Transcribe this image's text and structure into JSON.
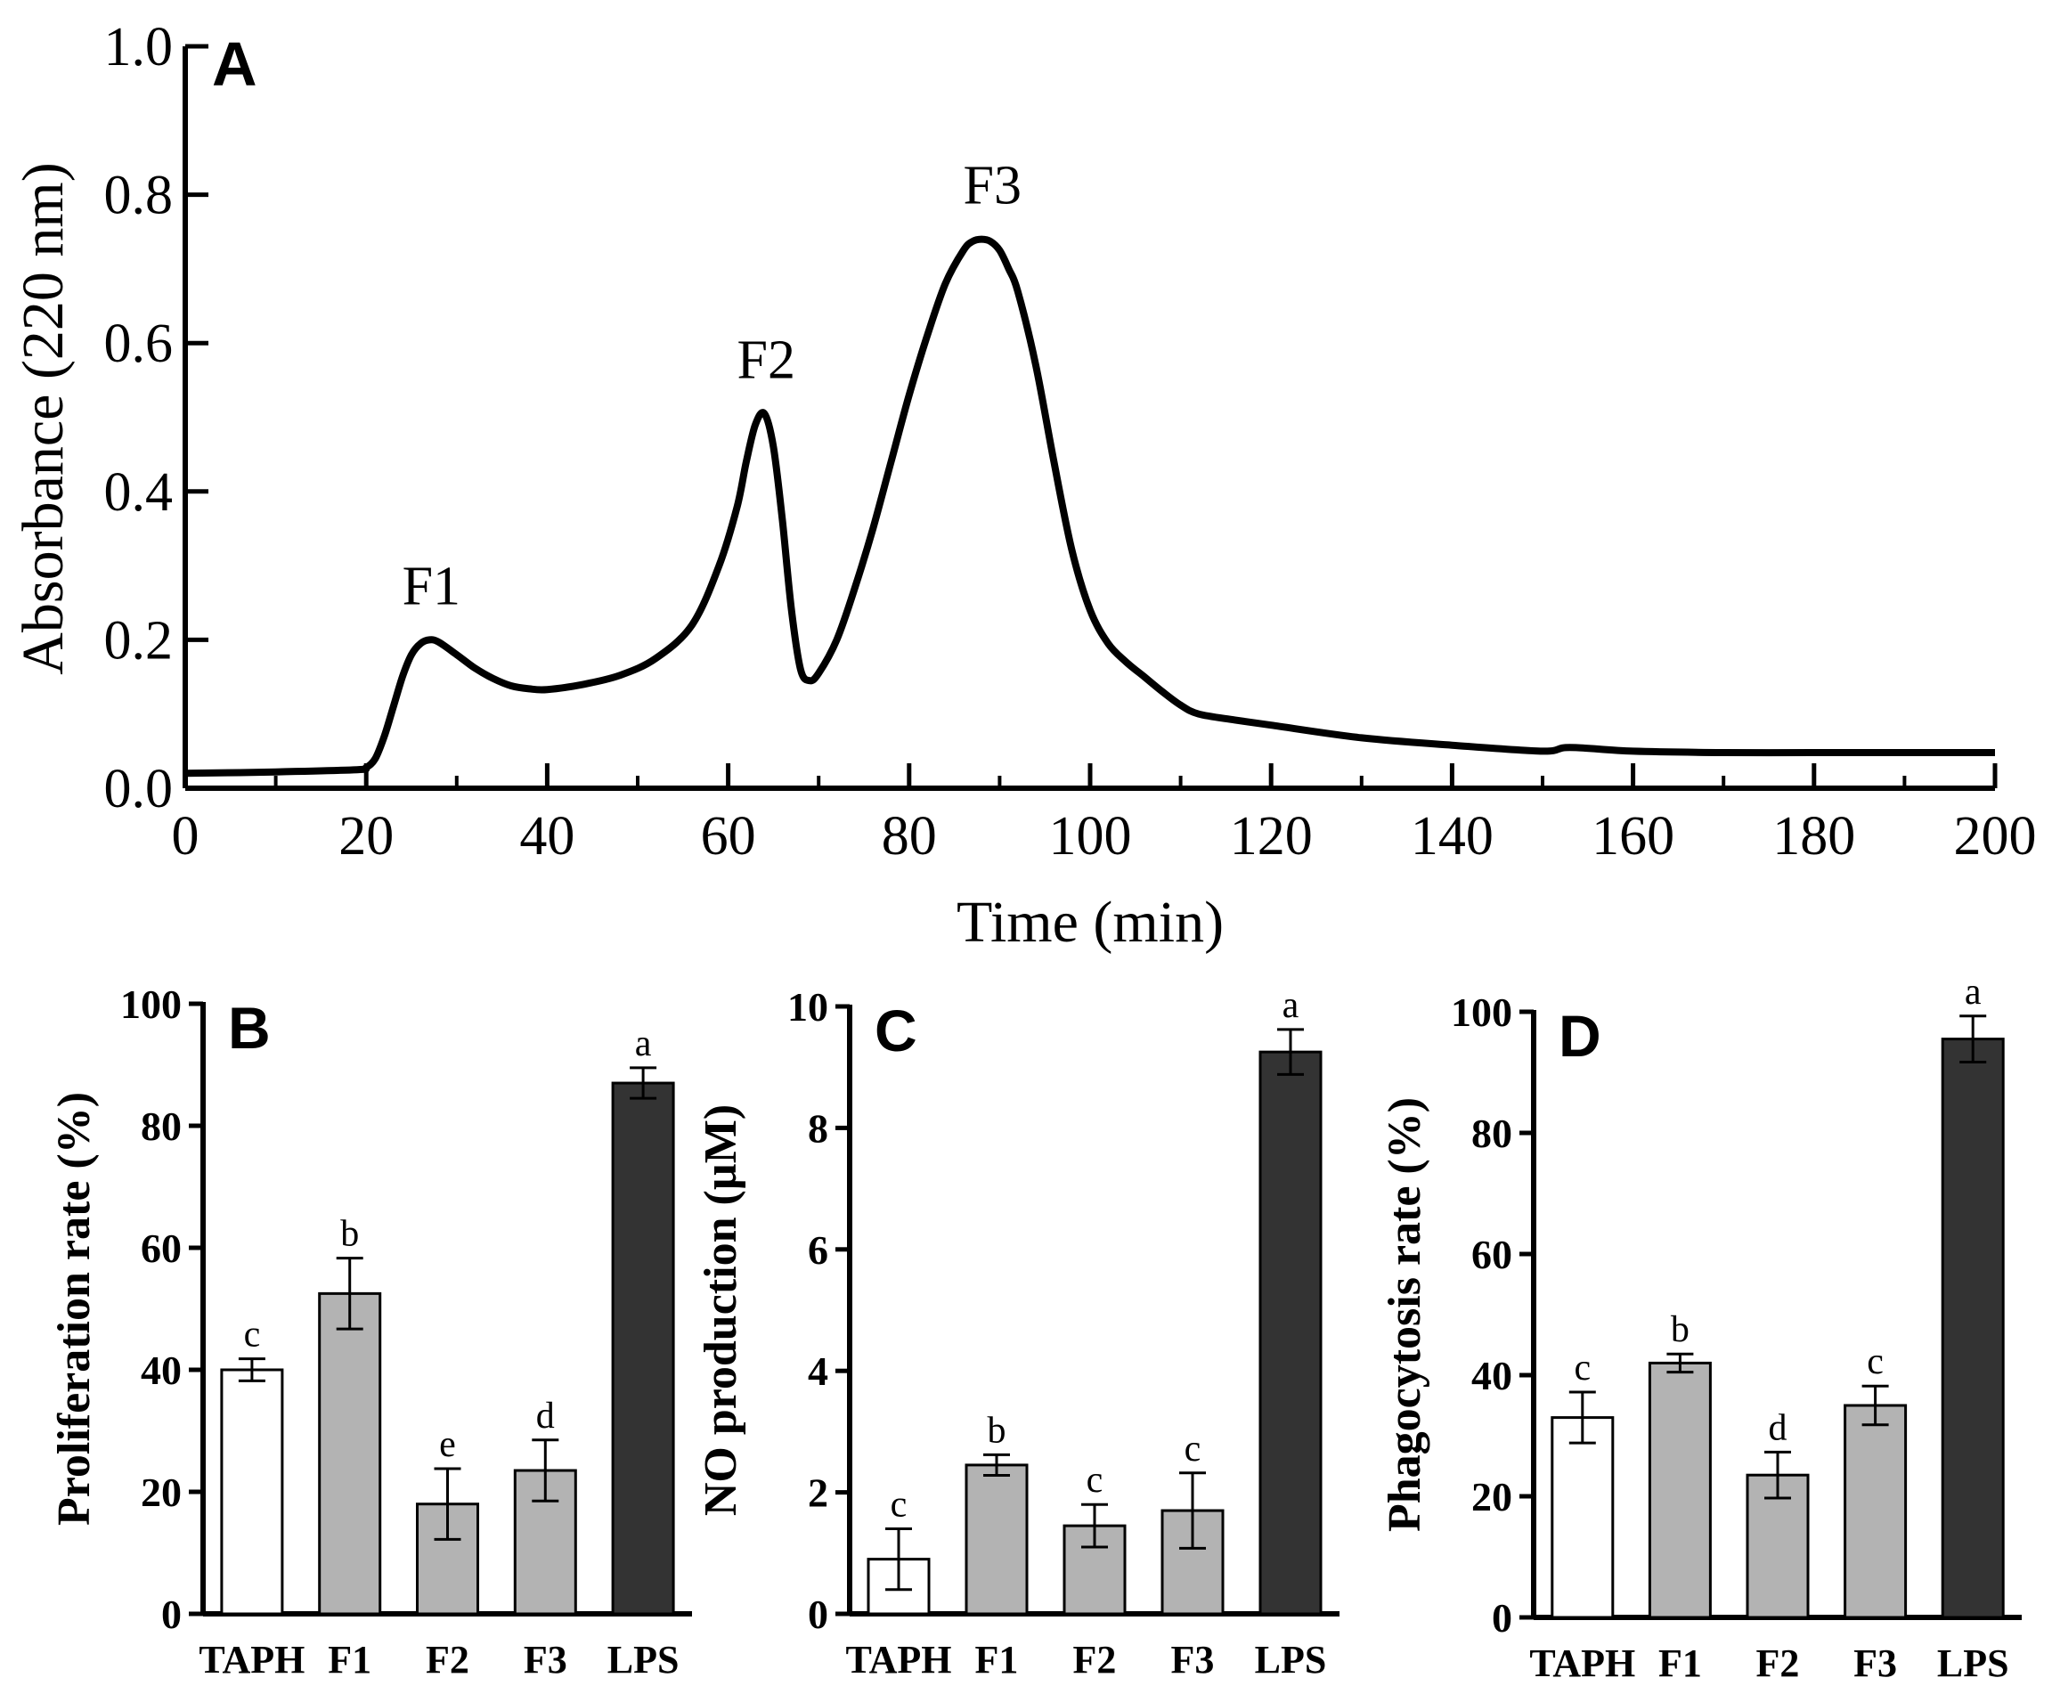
{
  "chart_data": [
    {
      "type": "line",
      "panel": "A",
      "xlabel": "Time (min)",
      "ylabel": "Absorbance (220 nm)",
      "xlim": [
        0,
        200
      ],
      "ylim": [
        0,
        1.0
      ],
      "xticks": [
        "0",
        "20",
        "40",
        "60",
        "80",
        "100",
        "120",
        "140",
        "160",
        "180",
        "200"
      ],
      "yticks": [
        "0.0",
        "0.2",
        "0.4",
        "0.6",
        "0.8",
        "1.0"
      ],
      "x": [
        0,
        10,
        19,
        20,
        21,
        22,
        23,
        24,
        25,
        26,
        27,
        28,
        30,
        32,
        34,
        36,
        38,
        40,
        44,
        48,
        52,
        56,
        59,
        61,
        62,
        63,
        64,
        65,
        66,
        67,
        68,
        69,
        70,
        72,
        74,
        76,
        78,
        80,
        82,
        84,
        86,
        87,
        88,
        89,
        90,
        91,
        92,
        94,
        96,
        98,
        100,
        102,
        104,
        106,
        108,
        110,
        112,
        116,
        120,
        130,
        140,
        150,
        153,
        160,
        170,
        180,
        190,
        200
      ],
      "y": [
        0.02,
        0.022,
        0.025,
        0.028,
        0.04,
        0.07,
        0.11,
        0.15,
        0.18,
        0.195,
        0.2,
        0.197,
        0.18,
        0.162,
        0.148,
        0.138,
        0.134,
        0.133,
        0.14,
        0.152,
        0.175,
        0.22,
        0.3,
        0.38,
        0.44,
        0.49,
        0.505,
        0.46,
        0.36,
        0.24,
        0.16,
        0.145,
        0.155,
        0.2,
        0.27,
        0.35,
        0.44,
        0.53,
        0.61,
        0.68,
        0.725,
        0.737,
        0.74,
        0.737,
        0.725,
        0.7,
        0.67,
        0.57,
        0.44,
        0.32,
        0.24,
        0.195,
        0.17,
        0.15,
        0.13,
        0.112,
        0.1,
        0.092,
        0.085,
        0.068,
        0.058,
        0.05,
        0.055,
        0.05,
        0.048,
        0.048,
        0.048,
        0.048
      ],
      "annotations": [
        {
          "text": "F1",
          "x": 27,
          "y": 0.2
        },
        {
          "text": "F2",
          "x": 64,
          "y": 0.505
        },
        {
          "text": "F3",
          "x": 89,
          "y": 0.74
        }
      ]
    },
    {
      "type": "bar",
      "panel": "B",
      "ylabel": "Proliferation rate (%)",
      "ylim": [
        0,
        100
      ],
      "yticks": [
        "0",
        "20",
        "40",
        "60",
        "80",
        "100"
      ],
      "categories": [
        "TAPH",
        "F1",
        "F2",
        "F3",
        "LPS"
      ],
      "values": [
        40,
        52.5,
        18,
        23.5,
        87
      ],
      "errors": [
        1.8,
        5.8,
        5.8,
        5,
        2.5
      ],
      "letters": [
        "c",
        "b",
        "e",
        "d",
        "a"
      ],
      "colors": [
        "#ffffff",
        "#b3b3b3",
        "#b3b3b3",
        "#b3b3b3",
        "#333333"
      ]
    },
    {
      "type": "bar",
      "panel": "C",
      "ylabel": "NO production (µM)",
      "ylim": [
        0,
        10
      ],
      "yticks": [
        "0",
        "2",
        "4",
        "6",
        "8",
        "10"
      ],
      "categories": [
        "TAPH",
        "F1",
        "F2",
        "F3",
        "LPS"
      ],
      "values": [
        0.9,
        2.45,
        1.45,
        1.7,
        9.25
      ],
      "errors": [
        0.5,
        0.17,
        0.35,
        0.62,
        0.37
      ],
      "letters": [
        "c",
        "b",
        "c",
        "c",
        "a"
      ],
      "colors": [
        "#ffffff",
        "#b3b3b3",
        "#b3b3b3",
        "#b3b3b3",
        "#333333"
      ]
    },
    {
      "type": "bar",
      "panel": "D",
      "ylabel": "Phagocytosis rate (%)",
      "ylim": [
        0,
        100
      ],
      "yticks": [
        "0",
        "20",
        "40",
        "60",
        "80",
        "100"
      ],
      "categories": [
        "TAPH",
        "F1",
        "F2",
        "F3",
        "LPS"
      ],
      "values": [
        33,
        42,
        23.5,
        35,
        95.5
      ],
      "errors": [
        4.2,
        1.5,
        3.8,
        3.2,
        3.8
      ],
      "letters": [
        "c",
        "b",
        "d",
        "c",
        "a"
      ],
      "colors": [
        "#ffffff",
        "#b3b3b3",
        "#b3b3b3",
        "#b3b3b3",
        "#333333"
      ]
    }
  ]
}
